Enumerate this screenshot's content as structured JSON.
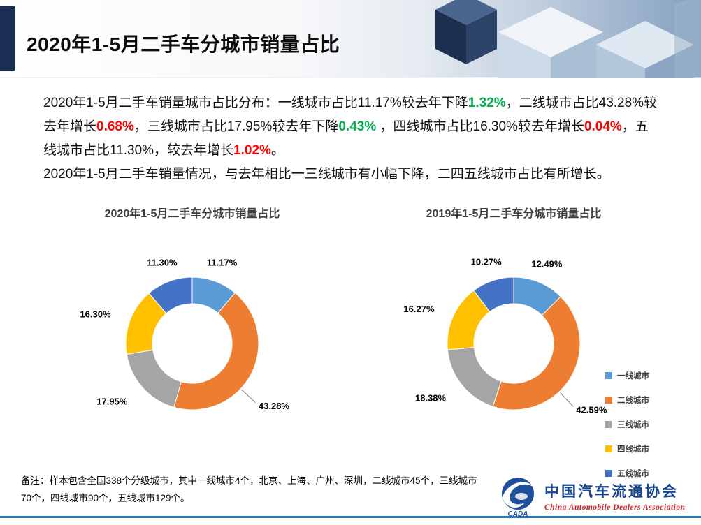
{
  "slide": {
    "title": "2020年1-5月二手车分城市销量占比",
    "paragraph1_parts": [
      {
        "text": "2020年1-5月二手车销量城市占比分布：一线城市占比11.17%较去年下降",
        "emphasis": "none"
      },
      {
        "text": "1.32%",
        "emphasis": "green"
      },
      {
        "text": "，二线城市占比43.28%较去年增长",
        "emphasis": "none"
      },
      {
        "text": "0.68%",
        "emphasis": "red"
      },
      {
        "text": "，三线城市占比17.95%较去年下降",
        "emphasis": "none"
      },
      {
        "text": "0.43%",
        "emphasis": "green"
      },
      {
        "text": " ，四线城市占比16.30%较去年增长",
        "emphasis": "none"
      },
      {
        "text": "0.04%",
        "emphasis": "red"
      },
      {
        "text": "，五线城市占比11.30%，较去年增长",
        "emphasis": "none"
      },
      {
        "text": "1.02%",
        "emphasis": "red"
      },
      {
        "text": "。",
        "emphasis": "none"
      }
    ],
    "paragraph2": "2020年1-5月二手车销量情况，与去年相比一三线城市有小幅下降，二四五线城市占比有所增长。",
    "note": "备注：样本包含全国338个分级城市，其中一线城市4个，北京、上海、广州、深圳，二线城市45个，三线城市70个，四线城市90个，五线城市129个。"
  },
  "chart_data": [
    {
      "type": "pie",
      "subtype": "donut",
      "title": "2020年1-5月二手车分城市销量占比",
      "categories": [
        "一线城市",
        "二线城市",
        "三线城市",
        "四线城市",
        "五线城市"
      ],
      "values": [
        11.17,
        43.28,
        17.95,
        16.3,
        11.3
      ],
      "labels": [
        "11.17%",
        "43.28%",
        "17.95%",
        "16.30%",
        "11.30%"
      ],
      "colors": [
        "#5B9BD5",
        "#ED7D31",
        "#A5A5A5",
        "#FFC000",
        "#4472C4"
      ],
      "start_angle_deg": -90,
      "direction": "clockwise",
      "legend_position": "right"
    },
    {
      "type": "pie",
      "subtype": "donut",
      "title": "2019年1-5月二手车分城市销量占比",
      "categories": [
        "一线城市",
        "二线城市",
        "三线城市",
        "四线城市",
        "五线城市"
      ],
      "values": [
        12.49,
        42.59,
        18.38,
        16.27,
        10.27
      ],
      "labels": [
        "12.49%",
        "42.59%",
        "18.38%",
        "16.27%",
        "10.27%"
      ],
      "colors": [
        "#5B9BD5",
        "#ED7D31",
        "#A5A5A5",
        "#FFC000",
        "#4472C4"
      ],
      "start_angle_deg": -90,
      "direction": "clockwise",
      "legend_position": "right"
    }
  ],
  "legend": {
    "items": [
      {
        "label": "一线城市",
        "color": "#5B9BD5"
      },
      {
        "label": "二线城市",
        "color": "#ED7D31"
      },
      {
        "label": "三线城市",
        "color": "#A5A5A5"
      },
      {
        "label": "四线城市",
        "color": "#FFC000"
      },
      {
        "label": "五线城市",
        "color": "#4472C4"
      }
    ]
  },
  "colors": {
    "increase_text": "#FF0000",
    "decrease_text": "#00B050",
    "header_accent": "#1B2F54",
    "bottom_rule": "#2E75B6",
    "logo_blue": "#17448E",
    "logo_red": "#CF2020"
  },
  "logo": {
    "name_cn": "中国汽车流通协会",
    "name_en": "China Automobile Dealers Association",
    "emblem_text": "CADA"
  }
}
